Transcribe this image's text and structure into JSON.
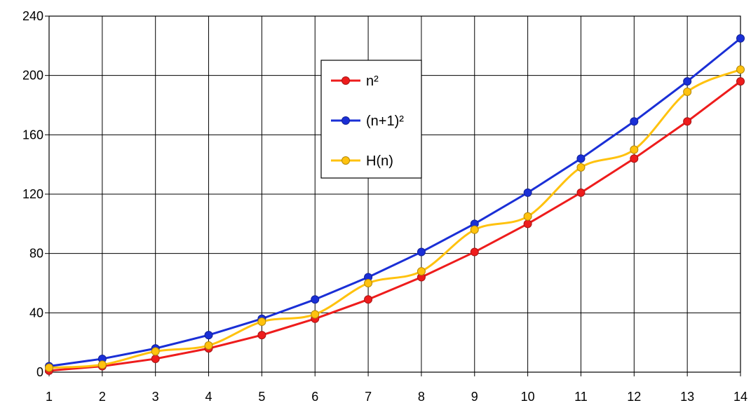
{
  "chart_data": {
    "type": "line",
    "title": "",
    "xlabel": "",
    "ylabel": "",
    "x": [
      1,
      2,
      3,
      4,
      5,
      6,
      7,
      8,
      9,
      10,
      11,
      12,
      13,
      14
    ],
    "xlim": [
      1,
      14
    ],
    "ylim": [
      0,
      240
    ],
    "y_ticks": [
      0,
      40,
      80,
      120,
      160,
      200,
      240
    ],
    "grid": true,
    "legend_position": "upper-center",
    "series": [
      {
        "name": "n²",
        "color": "#ee1c1c",
        "smooth": false,
        "values": [
          1,
          4,
          9,
          16,
          25,
          36,
          49,
          64,
          81,
          100,
          121,
          144,
          169,
          196
        ]
      },
      {
        "name": "(n+1)²",
        "color": "#1a2fd6",
        "smooth": false,
        "values": [
          4,
          9,
          16,
          25,
          36,
          49,
          64,
          81,
          100,
          121,
          144,
          169,
          196,
          225
        ]
      },
      {
        "name": "H(n)",
        "color": "#ffc20e",
        "smooth": true,
        "values": [
          3,
          5,
          14,
          18,
          34,
          39,
          60,
          68,
          96,
          105,
          138,
          150,
          189,
          204
        ]
      }
    ]
  }
}
